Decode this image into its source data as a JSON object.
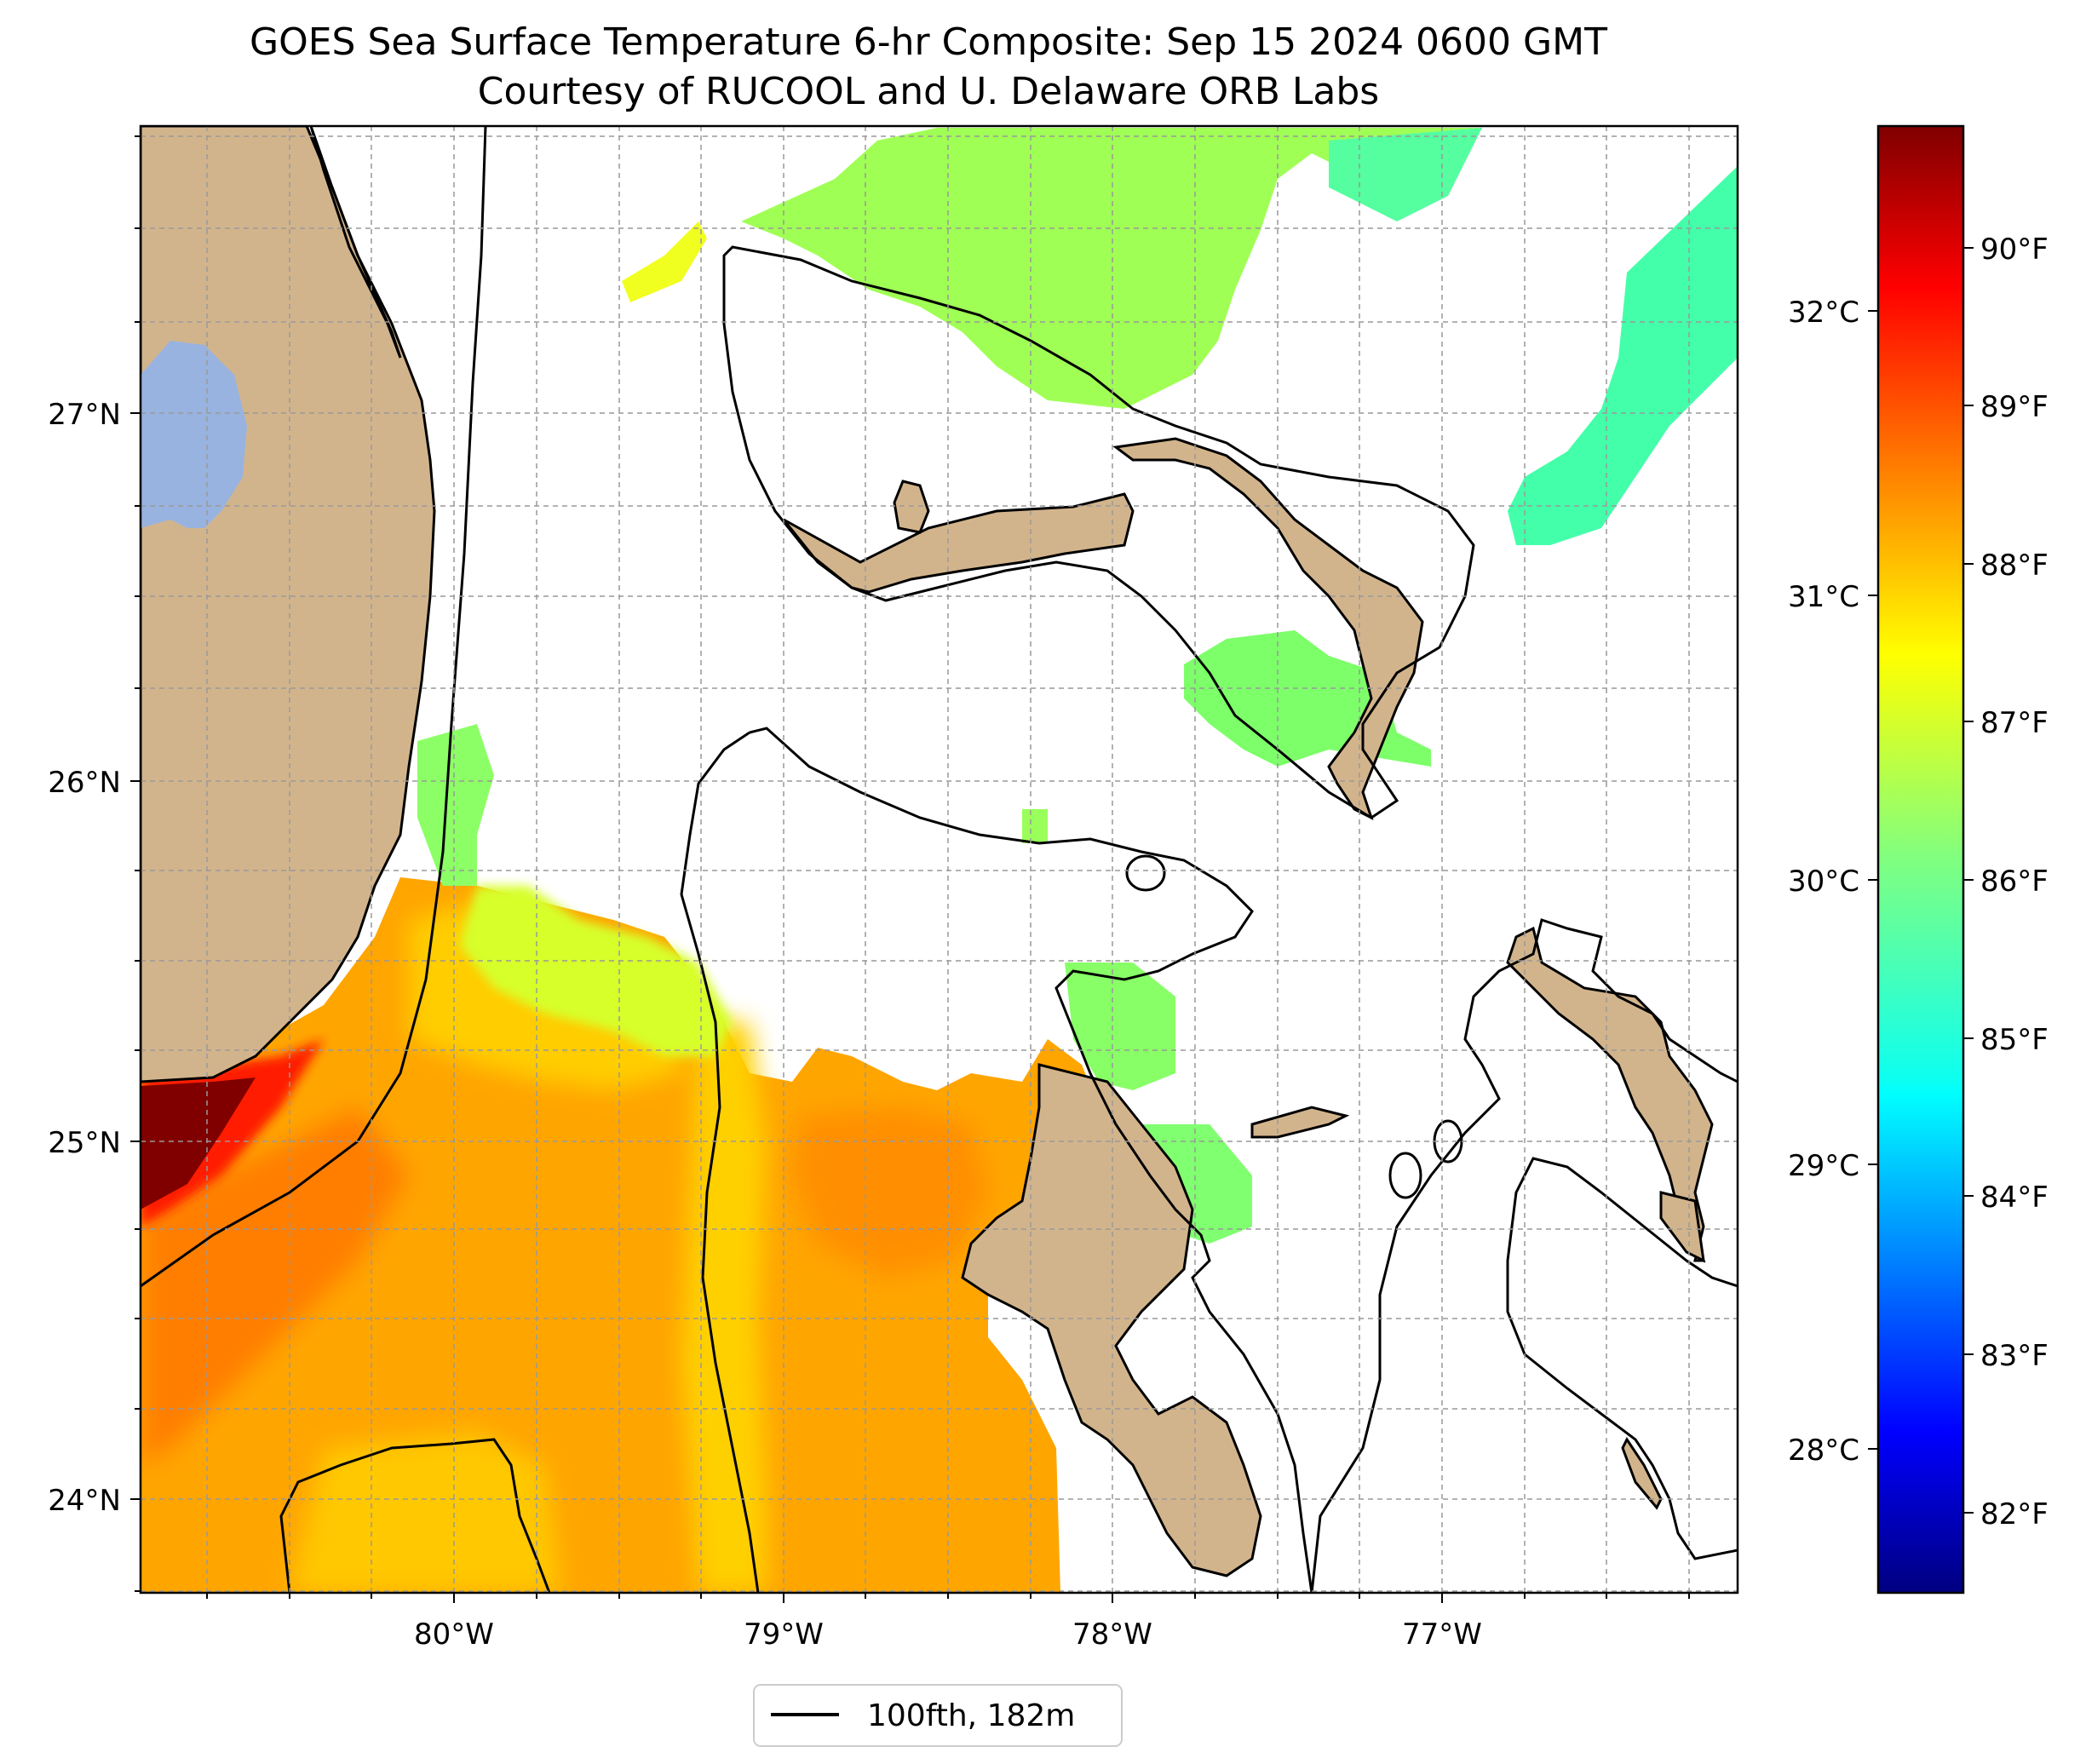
{
  "title": {
    "line1": "GOES Sea Surface Temperature 6-hr Composite: Sep 15 2024 0600 GMT",
    "line2": "Courtesy of RUCOOL and U. Delaware ORB Labs"
  },
  "map": {
    "region": "South Florida / Straits of Florida / Northern Bahamas",
    "lon_range": [
      -80.95,
      -76.1
    ],
    "lat_range": [
      23.75,
      27.8
    ],
    "lat_labels": [
      "24°N",
      "25°N",
      "26°N",
      "27°N"
    ],
    "lon_labels": [
      "80°W",
      "79°W",
      "78°W",
      "77°W"
    ],
    "gridlines": true
  },
  "colorbar": {
    "celsius_labels": [
      "28°C",
      "29°C",
      "30°C",
      "31°C",
      "32°C"
    ],
    "fahrenheit_labels": [
      "82°F",
      "83°F",
      "84°F",
      "85°F",
      "86°F",
      "87°F",
      "88°F",
      "89°F",
      "90°F"
    ],
    "range_f": [
      81.5,
      90.8
    ],
    "colormap": "jet"
  },
  "legend": {
    "label": "100fth, 182m",
    "line_color": "#000000"
  },
  "colors": {
    "land": "#d2b48c",
    "lake": "#99b3e0",
    "missing": "#ffffff",
    "warm_core": "#800000",
    "warm": "#ff6a00",
    "moderate": "#ffcc00",
    "cool": "#a6ff55",
    "cooler": "#33ffb0"
  }
}
